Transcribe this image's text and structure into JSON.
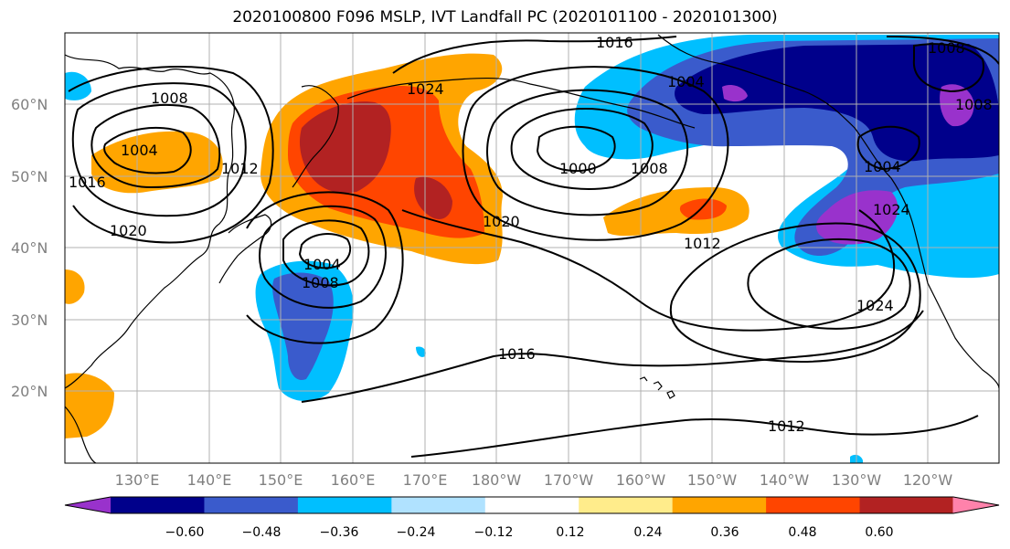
{
  "title": "2020100800 F096 MSLP, IVT Landfall PC (2020101100 - 2020101300)",
  "map": {
    "lat_ticks": [
      "60°N",
      "50°N",
      "40°N",
      "30°N",
      "20°N"
    ],
    "lon_ticks": [
      "130°E",
      "140°E",
      "150°E",
      "160°E",
      "170°E",
      "180°W",
      "170°W",
      "160°W",
      "150°W",
      "140°W",
      "130°W",
      "120°W"
    ],
    "contour_labels": [
      "1016",
      "1008",
      "1008",
      "1004",
      "1004",
      "1000",
      "1008",
      "1012",
      "1016",
      "1020",
      "1024",
      "1020",
      "1004",
      "1008",
      "1012",
      "1024",
      "1016",
      "1012",
      "1024",
      "1008",
      "1004"
    ]
  },
  "colorbar": {
    "labels": [
      "−0.60",
      "−0.48",
      "−0.36",
      "−0.24",
      "−0.12",
      "0.12",
      "0.24",
      "0.36",
      "0.48",
      "0.60"
    ],
    "colors": [
      "#9932CC",
      "#00008B",
      "#3A5BCC",
      "#00BFFF",
      "#B0E2FF",
      "#FFFFFF",
      "#FFEC8B",
      "#FFA500",
      "#FF4500",
      "#B22222",
      "#FF82AB"
    ]
  }
}
